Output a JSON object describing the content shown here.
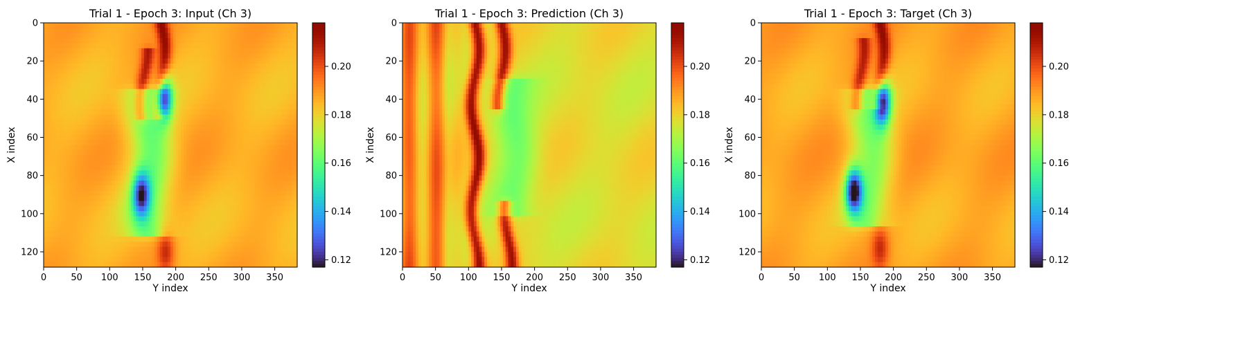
{
  "figure": {
    "colormap": "turbo"
  },
  "chart_data": [
    {
      "type": "heatmap",
      "title": "Trial 1 - Epoch 3: Input (Ch 3)",
      "xlabel": "Y index",
      "ylabel": "X index",
      "xlim": [
        0,
        384
      ],
      "ylim": [
        128,
        0
      ],
      "xticks": [
        "0",
        "50",
        "100",
        "150",
        "200",
        "250",
        "300",
        "350"
      ],
      "yticks": [
        "0",
        "20",
        "40",
        "60",
        "80",
        "100",
        "120"
      ],
      "colorbar": {
        "min": 0.117,
        "max": 0.218,
        "ticks": [
          "0.12",
          "0.14",
          "0.16",
          "0.18",
          "0.20"
        ]
      },
      "features": [
        {
          "kind": "background",
          "value": 0.186
        },
        {
          "kind": "hot_streak",
          "y": 178,
          "x_range": [
            0,
            45
          ],
          "value": 0.212
        },
        {
          "kind": "hot_streak",
          "y": 152,
          "x_range": [
            20,
            45
          ],
          "value": 0.208
        },
        {
          "kind": "hot_blob",
          "y": 185,
          "x": 120,
          "value": 0.205
        },
        {
          "kind": "cool_zone",
          "y": 160,
          "x_range": [
            40,
            105
          ],
          "value": 0.162
        },
        {
          "kind": "cool_spot",
          "y": 182,
          "x": 40,
          "value": 0.13
        },
        {
          "kind": "cool_spot",
          "y": 148,
          "x": 90,
          "value": 0.138
        }
      ]
    },
    {
      "type": "heatmap",
      "title": "Trial 1 - Epoch 3: Prediction (Ch 3)",
      "xlabel": "Y index",
      "ylabel": "X index",
      "xlim": [
        0,
        384
      ],
      "ylim": [
        128,
        0
      ],
      "xticks": [
        "0",
        "50",
        "100",
        "150",
        "200",
        "250",
        "300",
        "350"
      ],
      "yticks": [
        "0",
        "20",
        "40",
        "60",
        "80",
        "100",
        "120"
      ],
      "colorbar": {
        "min": 0.117,
        "max": 0.218,
        "ticks": [
          "0.12",
          "0.14",
          "0.16",
          "0.18",
          "0.20"
        ]
      },
      "features": [
        {
          "kind": "background",
          "value": 0.178
        },
        {
          "kind": "hot_band",
          "y_range": [
            0,
            60
          ],
          "value": 0.198
        },
        {
          "kind": "hot_streak",
          "y": 110,
          "x_range": [
            0,
            128
          ],
          "value": 0.213
        },
        {
          "kind": "hot_streak",
          "y": 150,
          "x_range": [
            0,
            40
          ],
          "value": 0.21
        },
        {
          "kind": "hot_streak",
          "y": 160,
          "x_range": [
            100,
            128
          ],
          "value": 0.21
        },
        {
          "kind": "cool_zone",
          "y": 170,
          "x_range": [
            35,
            95
          ],
          "value": 0.163
        }
      ]
    },
    {
      "type": "heatmap",
      "title": "Trial 1 - Epoch 3: Target (Ch 3)",
      "xlabel": "Y index",
      "ylabel": "X index",
      "xlim": [
        0,
        384
      ],
      "ylim": [
        128,
        0
      ],
      "xticks": [
        "0",
        "50",
        "100",
        "150",
        "200",
        "250",
        "300",
        "350"
      ],
      "yticks": [
        "0",
        "20",
        "40",
        "60",
        "80",
        "100",
        "120"
      ],
      "colorbar": {
        "min": 0.117,
        "max": 0.218,
        "ticks": [
          "0.12",
          "0.14",
          "0.16",
          "0.18",
          "0.20"
        ]
      },
      "features": [
        {
          "kind": "background",
          "value": 0.187
        },
        {
          "kind": "hot_streak",
          "y": 180,
          "x_range": [
            0,
            40
          ],
          "value": 0.212
        },
        {
          "kind": "hot_streak",
          "y": 150,
          "x_range": [
            15,
            40
          ],
          "value": 0.207
        },
        {
          "kind": "hot_blob",
          "y": 180,
          "x": 118,
          "value": 0.205
        },
        {
          "kind": "cool_zone",
          "y": 165,
          "x_range": [
            40,
            100
          ],
          "value": 0.165
        },
        {
          "kind": "cool_spot",
          "y": 183,
          "x": 42,
          "value": 0.125
        },
        {
          "kind": "cool_spot",
          "y": 140,
          "x": 88,
          "value": 0.124
        }
      ]
    }
  ]
}
